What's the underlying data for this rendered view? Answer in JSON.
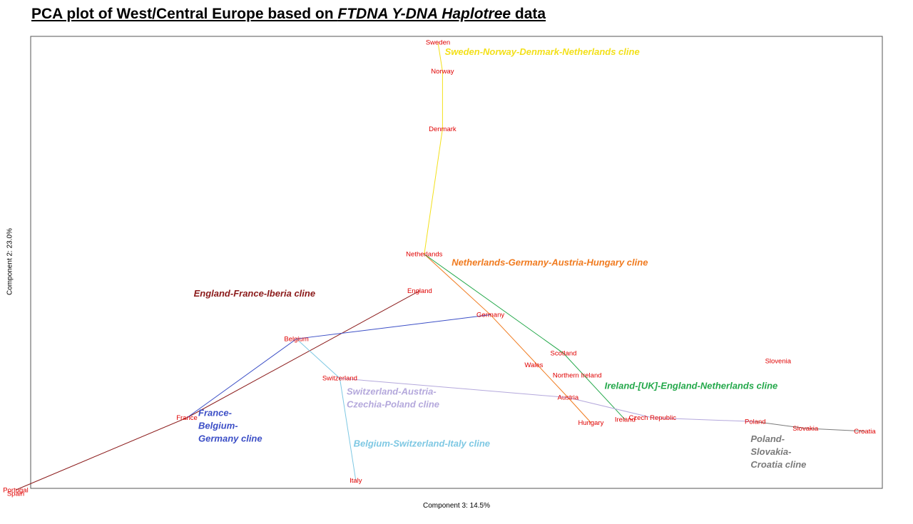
{
  "title": {
    "prefix": "PCA plot of West/Central Europe based on ",
    "italic": "FTDNA Y-DNA Haplotree",
    "suffix": " data"
  },
  "chart_data": {
    "type": "scatter",
    "xlabel": "Component 3: 14.5%",
    "ylabel": "Component 2: 23.0%",
    "point_color": "#e00000",
    "points": [
      {
        "label": "Sweden",
        "x": 0.1,
        "y": 2.5
      },
      {
        "label": "Norway",
        "x": 0.12,
        "y": 2.2
      },
      {
        "label": "Denmark",
        "x": 0.12,
        "y": 1.6
      },
      {
        "label": "Netherlands",
        "x": 0.04,
        "y": 0.3
      },
      {
        "label": "England",
        "x": 0.02,
        "y": -0.08
      },
      {
        "label": "Germany",
        "x": 0.33,
        "y": -0.33
      },
      {
        "label": "Belgium",
        "x": -0.52,
        "y": -0.58
      },
      {
        "label": "Scotland",
        "x": 0.65,
        "y": -0.73
      },
      {
        "label": "Wales",
        "x": 0.52,
        "y": -0.85
      },
      {
        "label": "Northern Ireland",
        "x": 0.71,
        "y": -0.96
      },
      {
        "label": "Slovenia",
        "x": 1.59,
        "y": -0.81
      },
      {
        "label": "Switzerland",
        "x": -0.33,
        "y": -0.99
      },
      {
        "label": "Austria",
        "x": 0.67,
        "y": -1.19
      },
      {
        "label": "France",
        "x": -1.0,
        "y": -1.4
      },
      {
        "label": "Ireland",
        "x": 0.92,
        "y": -1.42
      },
      {
        "label": "Hungary",
        "x": 0.77,
        "y": -1.45
      },
      {
        "label": "Czech Republic",
        "x": 1.04,
        "y": -1.4
      },
      {
        "label": "Poland",
        "x": 1.49,
        "y": -1.44
      },
      {
        "label": "Slovakia",
        "x": 1.71,
        "y": -1.51
      },
      {
        "label": "Croatia",
        "x": 1.97,
        "y": -1.54
      },
      {
        "label": "Italy",
        "x": -0.26,
        "y": -2.05
      },
      {
        "label": "Portugal",
        "x": -1.75,
        "y": -2.15
      },
      {
        "label": "Spain",
        "x": -1.75,
        "y": -2.19
      }
    ],
    "clines": [
      {
        "name": "Sweden-Norway-Denmark-Netherlands cline",
        "color": "#f3e01a",
        "path": [
          [
            0.1,
            2.5
          ],
          [
            0.12,
            2.2
          ],
          [
            0.12,
            1.6
          ],
          [
            0.04,
            0.3
          ]
        ],
        "label_x": 0.13,
        "label_y": 2.37,
        "label_lines": [
          "Sweden-Norway-Denmark-Netherlands cline"
        ]
      },
      {
        "name": "Netherlands-Germany-Austria-Hungary cline",
        "color": "#f07a1e",
        "path": [
          [
            0.04,
            0.3
          ],
          [
            0.33,
            -0.33
          ],
          [
            0.67,
            -1.19
          ],
          [
            0.77,
            -1.45
          ]
        ],
        "label_x": 0.16,
        "label_y": 0.18,
        "label_lines": [
          "Netherlands-Germany-Austria-Hungary cline"
        ]
      },
      {
        "name": "England-France-Iberia cline",
        "color": "#8b1a1a",
        "path": [
          [
            0.02,
            -0.08
          ],
          [
            -1.0,
            -1.4
          ],
          [
            -1.75,
            -2.15
          ]
        ],
        "label_x": -0.97,
        "label_y": -0.14,
        "label_lines": [
          "England-France-Iberia cline"
        ]
      },
      {
        "name": "France-Belgium-Germany cline",
        "color": "#3b4ec6",
        "path": [
          [
            0.33,
            -0.33
          ],
          [
            -0.52,
            -0.58
          ],
          [
            -1.0,
            -1.4
          ]
        ],
        "label_x": -0.95,
        "label_y": -1.38,
        "label_lines": [
          "France-",
          "Belgium-",
          "Germany cline"
        ]
      },
      {
        "name": "Ireland-[UK]-England-Netherlands cline",
        "color": "#23a84a",
        "path": [
          [
            0.04,
            0.3
          ],
          [
            0.65,
            -0.73
          ],
          [
            0.92,
            -1.42
          ]
        ],
        "label_x": 0.83,
        "label_y": -1.1,
        "label_lines": [
          "Ireland-[UK]-England-Netherlands cline"
        ]
      },
      {
        "name": "Switzerland-Austria-Czechia-Poland cline",
        "color": "#b4a8dc",
        "path": [
          [
            -0.33,
            -0.99
          ],
          [
            0.67,
            -1.19
          ],
          [
            1.04,
            -1.4
          ],
          [
            1.49,
            -1.44
          ]
        ],
        "label_x": -0.3,
        "label_y": -1.16,
        "label_lines": [
          "Switzerland-Austria-",
          "Czechia-Poland cline"
        ]
      },
      {
        "name": "Belgium-Switzerland-Italy cline",
        "color": "#7ec8e3",
        "path": [
          [
            -0.52,
            -0.58
          ],
          [
            -0.33,
            -0.99
          ],
          [
            -0.26,
            -2.05
          ]
        ],
        "label_x": -0.27,
        "label_y": -1.7,
        "label_lines": [
          "Belgium-Switzerland-Italy cline"
        ]
      },
      {
        "name": "Poland-Slovakia-Croatia cline",
        "color": "#7a7a7a",
        "path": [
          [
            1.49,
            -1.44
          ],
          [
            1.71,
            -1.51
          ],
          [
            1.97,
            -1.54
          ]
        ],
        "label_x": 1.47,
        "label_y": -1.65,
        "label_lines": [
          "Poland-",
          "Slovakia-",
          "Croatia cline"
        ]
      }
    ]
  }
}
